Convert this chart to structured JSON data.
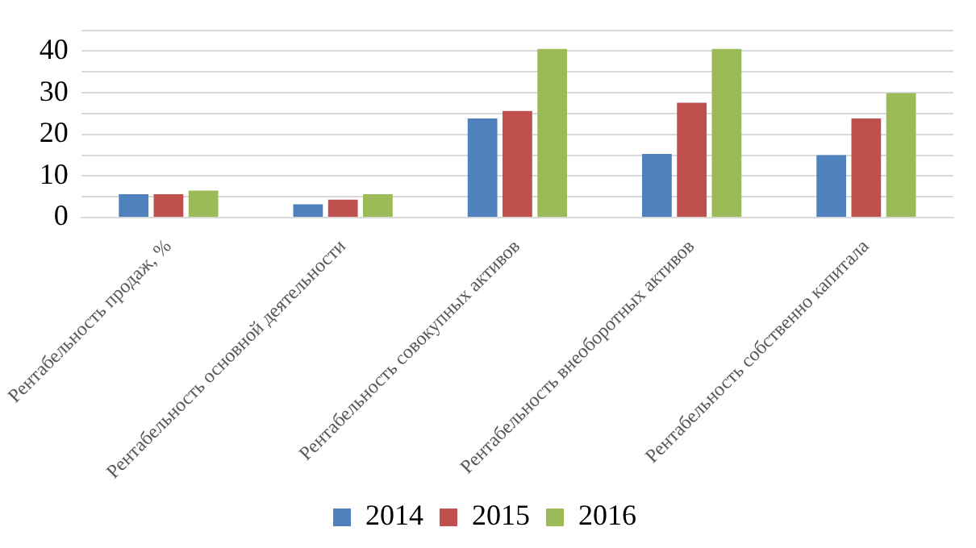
{
  "chart_data": {
    "type": "bar",
    "categories": [
      "Рентабельность продаж, %",
      "Рентабельность основной деятельности",
      "Рентабельность совокупных активов",
      "Рентабельность внеоборотных активов",
      "Рентабельность собственно капитала"
    ],
    "series": [
      {
        "name": "2014",
        "color": "#4f81bd",
        "values": [
          5.6,
          3.2,
          23.8,
          15.3,
          15
        ]
      },
      {
        "name": "2015",
        "color": "#c0504d",
        "values": [
          5.6,
          4.3,
          25.6,
          27.6,
          23.8
        ]
      },
      {
        "name": "2016",
        "color": "#9bbb59",
        "values": [
          6.5,
          5.6,
          40.5,
          40.5,
          29.9
        ]
      }
    ],
    "ylim": [
      0,
      45
    ],
    "yticks": [
      0,
      {
        "value": 5,
        "label": null
      },
      10,
      {
        "value": 15,
        "label": null
      },
      20,
      {
        "value": 25,
        "label": null
      },
      30,
      {
        "value": 35,
        "label": null
      },
      40,
      {
        "value": 45,
        "label": null
      }
    ],
    "grid": "y",
    "legend": "bottom"
  }
}
